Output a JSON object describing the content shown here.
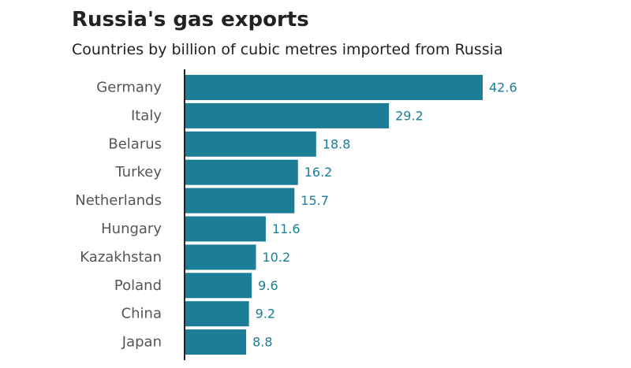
{
  "chart_data": {
    "type": "bar",
    "orientation": "horizontal",
    "title": "Russia's gas exports",
    "subtitle": "Countries by billion of cubic metres imported from Russia",
    "categories": [
      "Germany",
      "Italy",
      "Belarus",
      "Turkey",
      "Netherlands",
      "Hungary",
      "Kazakhstan",
      "Poland",
      "China",
      "Japan"
    ],
    "values": [
      42.6,
      29.2,
      18.8,
      16.2,
      15.7,
      11.6,
      10.2,
      9.6,
      9.2,
      8.8
    ],
    "data_labels": [
      "42.6",
      "29.2",
      "18.8",
      "16.2",
      "15.7",
      "11.6",
      "10.2",
      "9.6",
      "9.2",
      "8.8"
    ],
    "xlim": [
      0,
      42.6
    ],
    "grid": false,
    "legend": "none",
    "bar_color": "#1b7d96",
    "label_color": "#1b7d96",
    "category_label_color": "#555555",
    "axis_color": "#222222"
  }
}
